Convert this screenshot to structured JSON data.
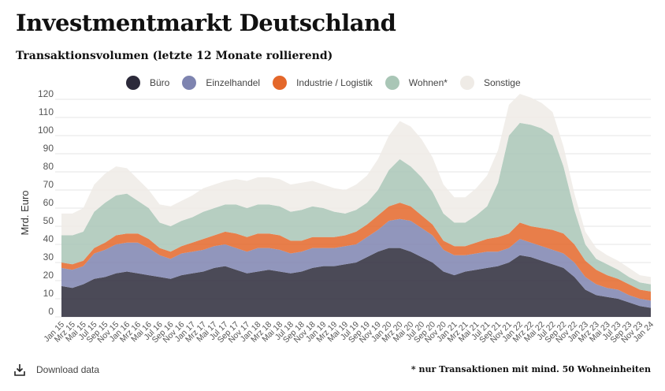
{
  "header": {
    "title": "Investmentmarkt Deutschland",
    "subtitle": "Transaktionsvolumen (letzte 12 Monate rollierend)"
  },
  "footer": {
    "download_label": "Download data",
    "download_icon": "download-icon",
    "footnote": "* nur Transaktionen mit mind. 50 Wohneinheiten"
  },
  "chart_data": {
    "type": "area",
    "stacked": true,
    "ylabel": "Mrd. Euro",
    "ylim": [
      0,
      120
    ],
    "yticks": [
      0,
      10,
      20,
      30,
      40,
      50,
      60,
      70,
      80,
      90,
      100,
      110,
      120
    ],
    "grid": true,
    "legend_position": "top",
    "x": [
      "Jan 15",
      "Mrz 15",
      "Mai 15",
      "Jul 15",
      "Sep 15",
      "Nov 15",
      "Jan 16",
      "Mrz 16",
      "Mai 16",
      "Jul 16",
      "Sep 16",
      "Nov 16",
      "Jan 17",
      "Mrz 17",
      "Mai 17",
      "Jul 17",
      "Sep 17",
      "Nov 17",
      "Jan 18",
      "Mrz 18",
      "Mai 18",
      "Jul 18",
      "Sep 18",
      "Nov 18",
      "Jan 19",
      "Mrz 19",
      "Mai 19",
      "Jul 19",
      "Sep 19",
      "Nov 19",
      "Jan 20",
      "Mrz 20",
      "Mai 20",
      "Jul 20",
      "Sep 20",
      "Nov 20",
      "Jan 21",
      "Mrz 21",
      "Mai 21",
      "Jul 21",
      "Sep 21",
      "Nov 21",
      "Jan 22",
      "Mrz 22",
      "Mai 22",
      "Jul 22",
      "Sep 22",
      "Nov 22",
      "Jan 23",
      "Mrz 23",
      "Mai 23",
      "Jul 23",
      "Sep 23",
      "Nov 23",
      "Jan 24"
    ],
    "series": [
      {
        "name": "Büro",
        "color": "#2c2a3a",
        "values": [
          17,
          16,
          18,
          21,
          22,
          24,
          25,
          24,
          23,
          22,
          21,
          23,
          24,
          25,
          27,
          28,
          26,
          24,
          25,
          26,
          25,
          24,
          25,
          27,
          28,
          28,
          29,
          30,
          33,
          36,
          38,
          38,
          36,
          33,
          30,
          25,
          23,
          25,
          26,
          27,
          28,
          30,
          34,
          33,
          31,
          29,
          27,
          22,
          15,
          12,
          11,
          10,
          8,
          6,
          5
        ]
      },
      {
        "name": "Einzelhandel",
        "color": "#7e84b0",
        "values": [
          10,
          10,
          10,
          14,
          15,
          16,
          16,
          17,
          15,
          12,
          11,
          12,
          12,
          12,
          12,
          12,
          12,
          12,
          13,
          12,
          12,
          11,
          11,
          11,
          10,
          10,
          10,
          10,
          11,
          12,
          15,
          16,
          17,
          16,
          15,
          12,
          11,
          9,
          9,
          9,
          8,
          8,
          9,
          8,
          8,
          8,
          8,
          8,
          7,
          6,
          5,
          5,
          4,
          4,
          4
        ]
      },
      {
        "name": "Industrie / Logistik",
        "color": "#e4672a",
        "values": [
          3,
          3,
          3,
          3,
          4,
          5,
          5,
          5,
          5,
          4,
          4,
          4,
          5,
          6,
          6,
          7,
          8,
          8,
          8,
          8,
          8,
          7,
          6,
          6,
          6,
          6,
          6,
          7,
          7,
          8,
          8,
          9,
          8,
          7,
          6,
          5,
          5,
          5,
          6,
          7,
          8,
          8,
          9,
          9,
          10,
          11,
          11,
          10,
          9,
          8,
          7,
          6,
          6,
          5,
          5
        ]
      },
      {
        "name": "Wohnen*",
        "color": "#a9c6b6",
        "values": [
          15,
          16,
          16,
          20,
          22,
          22,
          22,
          18,
          17,
          14,
          14,
          14,
          14,
          15,
          15,
          15,
          16,
          16,
          16,
          16,
          16,
          16,
          17,
          17,
          16,
          14,
          12,
          12,
          12,
          14,
          20,
          24,
          22,
          21,
          18,
          15,
          13,
          13,
          15,
          18,
          30,
          54,
          55,
          56,
          55,
          52,
          37,
          19,
          9,
          6,
          6,
          5,
          4,
          4,
          4
        ]
      },
      {
        "name": "Sonstige",
        "color": "#efebe6",
        "values": [
          12,
          12,
          13,
          15,
          16,
          16,
          14,
          12,
          10,
          10,
          11,
          11,
          12,
          13,
          13,
          13,
          14,
          15,
          15,
          15,
          15,
          15,
          15,
          14,
          13,
          13,
          13,
          14,
          15,
          17,
          19,
          21,
          22,
          21,
          19,
          16,
          14,
          14,
          15,
          17,
          18,
          17,
          16,
          15,
          14,
          13,
          11,
          9,
          7,
          6,
          5,
          5,
          5,
          4,
          4
        ]
      }
    ]
  }
}
